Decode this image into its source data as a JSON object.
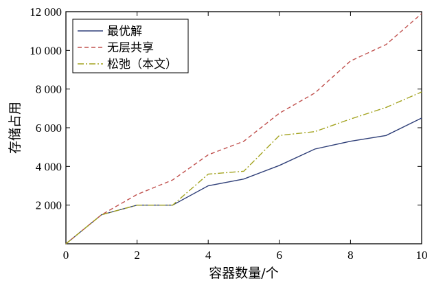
{
  "chart_data": {
    "type": "line",
    "xlabel": "容器数量/个",
    "ylabel": "存储占用",
    "xlim": [
      0,
      10
    ],
    "ylim": [
      0,
      12000
    ],
    "x_ticks": [
      0,
      2,
      4,
      6,
      8,
      10
    ],
    "x_tick_labels": [
      "0",
      "2",
      "4",
      "6",
      "8",
      "10"
    ],
    "y_ticks": [
      2000,
      4000,
      6000,
      8000,
      10000,
      12000
    ],
    "y_tick_labels": [
      "2 000",
      "4 000",
      "6 000",
      "8 000",
      "10 000",
      "12 000"
    ],
    "grid": false,
    "legend_position": "top-left",
    "x": [
      0,
      1,
      2,
      3,
      4,
      5,
      6,
      7,
      8,
      9,
      10
    ],
    "series": [
      {
        "name": "最优解",
        "color": "#2f3f78",
        "style": "solid",
        "values": [
          0,
          1500,
          2000,
          2000,
          3000,
          3350,
          4050,
          4900,
          5300,
          5600,
          6500
        ]
      },
      {
        "name": "无层共享",
        "color": "#c0504d",
        "style": "dashed",
        "values": [
          0,
          1500,
          2550,
          3300,
          4600,
          5300,
          6750,
          7800,
          9450,
          10300,
          11900
        ]
      },
      {
        "name": "松弛（本文）",
        "color": "#a3a31f",
        "style": "dashdot",
        "values": [
          0,
          1500,
          2000,
          2000,
          3600,
          3750,
          5600,
          5800,
          6450,
          7050,
          7850
        ]
      }
    ]
  }
}
